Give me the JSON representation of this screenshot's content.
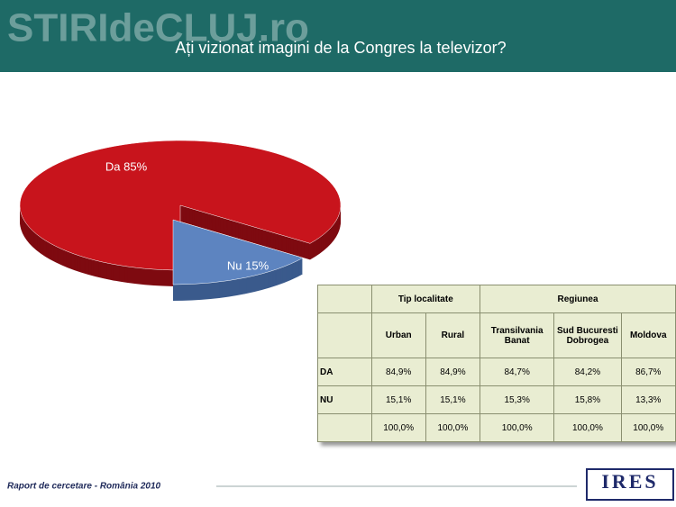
{
  "header": {
    "watermark": "STIRIdeCLUJ.ro"
  },
  "chart_data": {
    "type": "pie",
    "title": "Ați vizionat imagini de la Congres la televizor?",
    "values": [
      85,
      15
    ],
    "value_labels": [
      "Da 85%",
      "Nu 15%"
    ],
    "colors": [
      "#c8141c",
      "#5d84c0"
    ],
    "side_colors": [
      "#7e0a10",
      "#3a5a8c"
    ]
  },
  "table": {
    "groups": [
      "Tip localitate",
      "Regiunea"
    ],
    "columns": [
      "Urban",
      "Rural",
      "Transilvania Banat",
      "Sud Bucuresti Dobrogea",
      "Moldova"
    ],
    "rows": [
      [
        "DA",
        "84,9%",
        "84,9%",
        "84,7%",
        "84,2%",
        "86,7%"
      ],
      [
        "NU",
        "15,1%",
        "15,1%",
        "15,3%",
        "15,8%",
        "13,3%"
      ],
      [
        null,
        "100,0%",
        "100,0%",
        "100,0%",
        "100,0%",
        "100,0%"
      ]
    ]
  },
  "footer": {
    "text": "Raport de cercetare - România 2010",
    "logo": "IRES"
  }
}
